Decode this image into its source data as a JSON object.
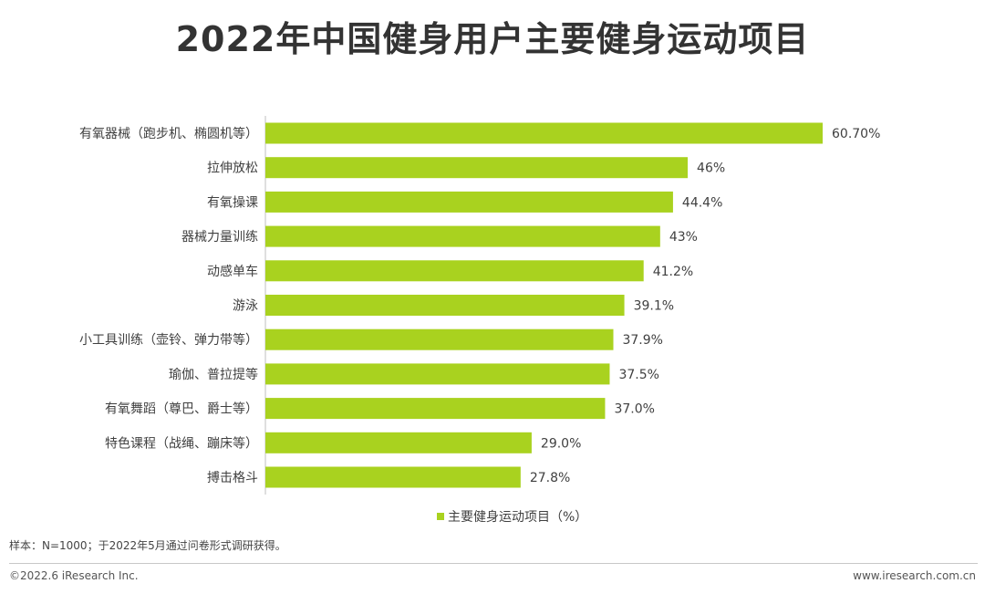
{
  "chart_data": {
    "type": "bar",
    "orientation": "horizontal",
    "title": "2022年中国健身用户主要健身运动项目",
    "categories": [
      "有氧器械（跑步机、椭圆机等）",
      "拉伸放松",
      "有氧操课",
      "器械力量训练",
      "动感单车",
      "游泳",
      "小工具训练（壶铃、弹力带等）",
      "瑜伽、普拉提等",
      "有氧舞蹈（尊巴、爵士等）",
      "特色课程（战绳、蹦床等）",
      "搏击格斗"
    ],
    "values": [
      60.7,
      46,
      44.4,
      43,
      41.2,
      39.1,
      37.9,
      37.5,
      37.0,
      29.0,
      27.8
    ],
    "value_labels": [
      "60.70%",
      "46%",
      "44.4%",
      "43%",
      "41.2%",
      "39.1%",
      "37.9%",
      "37.5%",
      "37.0%",
      "29.0%",
      "27.8%"
    ],
    "series": [
      {
        "name": "主要健身运动项目（%）",
        "values": [
          60.7,
          46,
          44.4,
          43,
          41.2,
          39.1,
          37.9,
          37.5,
          37.0,
          29.0,
          27.8
        ]
      }
    ],
    "xlim": [
      0,
      65
    ],
    "grid": false,
    "legend_position": "bottom",
    "color": "#a9d21f"
  },
  "footnote": "样本：N=1000；于2022年5月通过问卷形式调研获得。",
  "copyright": "©2022.6 iResearch Inc.",
  "website": "www.iresearch.com.cn"
}
